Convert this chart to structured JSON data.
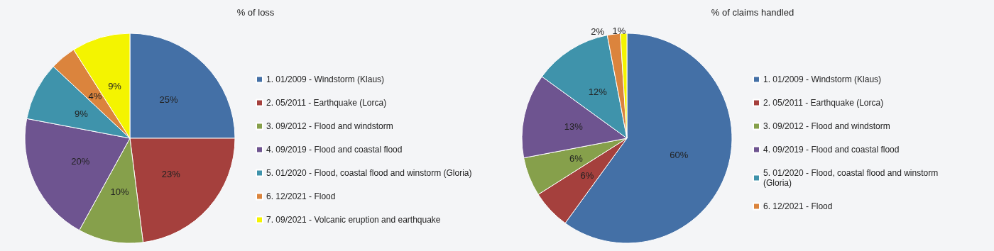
{
  "chart_data": [
    {
      "type": "pie",
      "title": "% of loss",
      "legend": "right",
      "categories": [
        "1. 01/2009 - Windstorm (Klaus)",
        "2. 05/2011 - Earthquake (Lorca)",
        "3. 09/2012 - Flood and windstorm",
        "4. 09/2019 - Flood and coastal flood",
        "5. 01/2020 - Flood, coastal flood and winstorm (Gloria)",
        "6. 12/2021 - Flood",
        "7. 09/2021 - Volcanic eruption and earthquake"
      ],
      "values": [
        25,
        23,
        10,
        20,
        9,
        4,
        9
      ],
      "value_labels": [
        "25%",
        "23%",
        "10%",
        "20%",
        "9%",
        "4%",
        "9%"
      ],
      "colors": [
        "#4470a6",
        "#a5403d",
        "#86a04b",
        "#6e5490",
        "#3f93ab",
        "#db843d",
        "#f4f400"
      ]
    },
    {
      "type": "pie",
      "title": "% of claims handled",
      "legend": "right",
      "categories": [
        "1. 01/2009 - Windstorm (Klaus)",
        "2. 05/2011 - Earthquake (Lorca)",
        "3. 09/2012 - Flood and windstorm",
        "4. 09/2019 - Flood and coastal flood",
        "5. 01/2020 - Flood, coastal flood and winstorm (Gloria)",
        "6. 12/2021 - Flood",
        null
      ],
      "values": [
        60,
        6,
        6,
        13,
        12,
        2,
        1
      ],
      "value_labels": [
        "60%",
        "6%",
        "6%",
        "13%",
        "12%",
        "2%",
        "1%"
      ],
      "colors": [
        "#4470a6",
        "#a5403d",
        "#86a04b",
        "#6e5490",
        "#3f93ab",
        "#db843d",
        "#f4f400"
      ]
    }
  ]
}
